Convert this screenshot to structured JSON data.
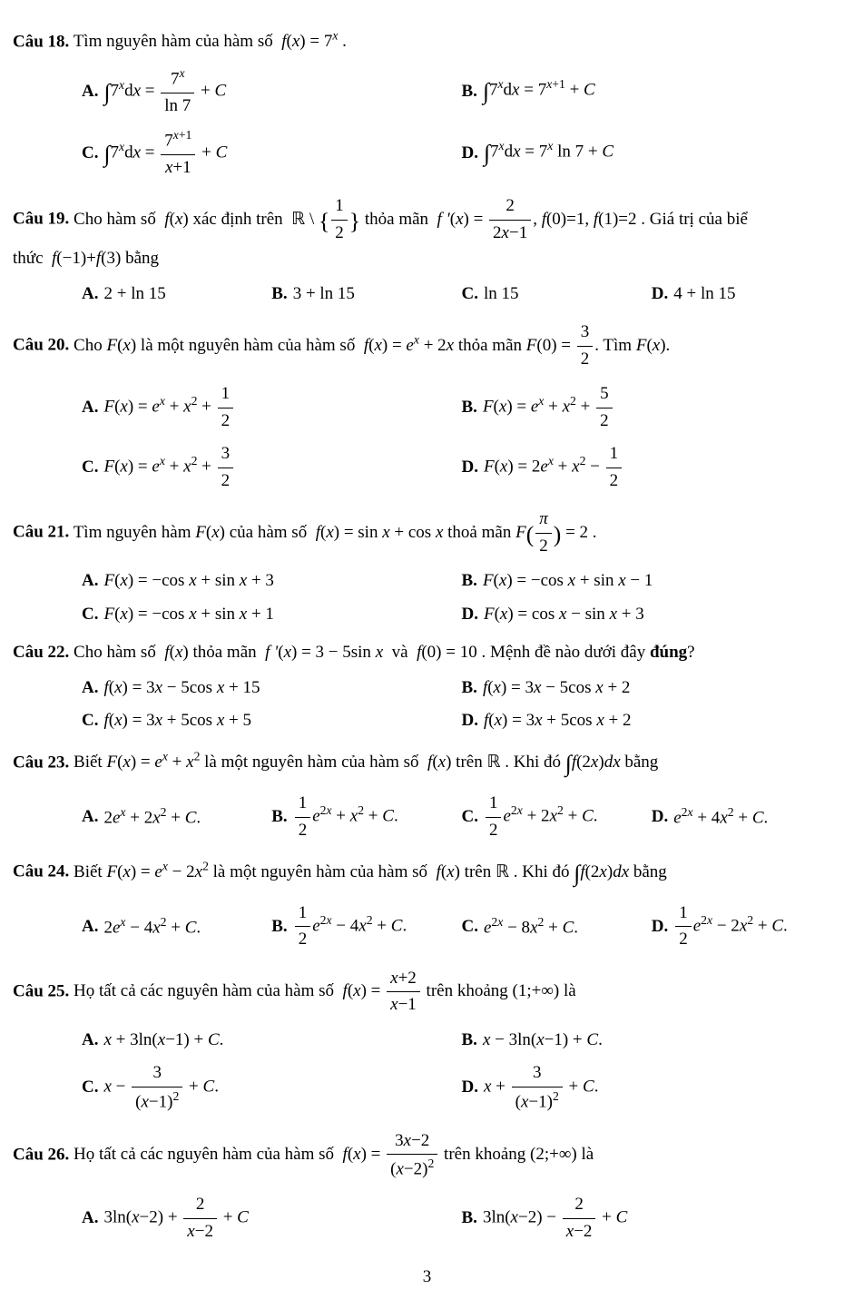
{
  "page_number": "3",
  "questions": [
    {
      "id": "q18",
      "label": "Câu 18.",
      "prompt_html": "Tìm nguyên hàm của hàm số &nbsp;<i>f</i>(<i>x</i>) = 7<sup><i>x</i></sup> .",
      "layout": "two",
      "options": [
        {
          "tag": "A.",
          "html": "<span class='int'>∫</span>7<sup><i>x</i></sup>d<i>x</i> = <span class='frac'><span class='n'>7<sup><i>x</i></sup></span><span class='d'>ln 7</span></span> + <i>C</i>"
        },
        {
          "tag": "B.",
          "html": "<span class='int'>∫</span>7<sup><i>x</i></sup>d<i>x</i> = 7<sup><i>x</i>+1</sup> + <i>C</i>"
        },
        {
          "tag": "C.",
          "html": "<span class='int'>∫</span>7<sup><i>x</i></sup>d<i>x</i> = <span class='frac'><span class='n'>7<sup><i>x</i>+1</sup></span><span class='d'><i>x</i>+1</span></span> + <i>C</i>"
        },
        {
          "tag": "D.",
          "html": "<span class='int'>∫</span>7<sup><i>x</i></sup>d<i>x</i> = 7<sup><i>x</i></sup> ln 7 + <i>C</i>"
        }
      ]
    },
    {
      "id": "q19",
      "label": "Câu  19.",
      "prompt_html": "Cho hàm số &nbsp;<i>f</i>(<i>x</i>) xác định trên &nbsp;<span class='dstr'>ℝ</span> \\ <span class='big'>{</span><span class='frac'><span class='n'>1</span><span class='d'>2</span></span><span class='big'>}</span> thỏa mãn &nbsp;<i>f ′</i>(<i>x</i>) = <span class='frac'><span class='n'>2</span><span class='d'>2<i>x</i>−1</span></span>, <i>f</i>(0)=1, <i>f</i>(1)=2 . Giá trị của biể",
      "prompt_line2": "thức &nbsp;<i>f</i>(−1)+<i>f</i>(3) bằng",
      "layout": "four",
      "options": [
        {
          "tag": "A.",
          "html": "2 + ln 15"
        },
        {
          "tag": "B.",
          "html": "3 + ln 15"
        },
        {
          "tag": "C.",
          "html": "ln 15"
        },
        {
          "tag": "D.",
          "html": "4 + ln 15"
        }
      ]
    },
    {
      "id": "q20",
      "label": "Câu 20.",
      "prompt_html": "Cho <i>F</i>(<i>x</i>) là một nguyên hàm của hàm số &nbsp;<i>f</i>(<i>x</i>) = <i>e</i><sup><i>x</i></sup> + 2<i>x</i> thỏa mãn <i>F</i>(0) = <span class='frac'><span class='n'>3</span><span class='d'>2</span></span>. Tìm <i>F</i>(<i>x</i>).",
      "layout": "two",
      "options": [
        {
          "tag": "A.",
          "html": "<i>F</i>(<i>x</i>) = <i>e</i><sup><i>x</i></sup> + <i>x</i><sup>2</sup> + <span class='frac'><span class='n'>1</span><span class='d'>2</span></span>"
        },
        {
          "tag": "B.",
          "html": "<i>F</i>(<i>x</i>) = <i>e</i><sup><i>x</i></sup> + <i>x</i><sup>2</sup> + <span class='frac'><span class='n'>5</span><span class='d'>2</span></span>"
        },
        {
          "tag": "C.",
          "html": "<i>F</i>(<i>x</i>) = <i>e</i><sup><i>x</i></sup> + <i>x</i><sup>2</sup> + <span class='frac'><span class='n'>3</span><span class='d'>2</span></span>"
        },
        {
          "tag": "D.",
          "html": "<i>F</i>(<i>x</i>) = 2<i>e</i><sup><i>x</i></sup> + <i>x</i><sup>2</sup> − <span class='frac'><span class='n'>1</span><span class='d'>2</span></span>"
        }
      ]
    },
    {
      "id": "q21",
      "label": "Câu 21.",
      "prompt_html": "Tìm nguyên hàm <i>F</i>(<i>x</i>) của hàm số &nbsp;<i>f</i>(<i>x</i>) = sin <i>x</i> + cos <i>x</i> thoả mãn <i>F</i><span class='big'>(</span><span class='frac'><span class='n'><i>π</i></span><span class='d'>2</span></span><span class='big'>)</span> = 2 .",
      "layout": "two",
      "options": [
        {
          "tag": "A.",
          "html": "<i>F</i>(<i>x</i>) = −cos <i>x</i> + sin <i>x</i> + 3"
        },
        {
          "tag": "B.",
          "html": "<i>F</i>(<i>x</i>) = −cos <i>x</i> + sin <i>x</i> − 1"
        },
        {
          "tag": "C.",
          "html": "<i>F</i>(<i>x</i>) = −cos <i>x</i> + sin <i>x</i> + 1"
        },
        {
          "tag": "D.",
          "html": "<i>F</i>(<i>x</i>) = cos <i>x</i> − sin <i>x</i> + 3"
        }
      ]
    },
    {
      "id": "q22",
      "label": "Câu 22.",
      "prompt_html": "Cho hàm số &nbsp;<i>f</i>(<i>x</i>) thỏa mãn &nbsp;<i>f '</i>(<i>x</i>) = 3 − 5sin <i>x</i>&nbsp; và &nbsp;<i>f</i>(0) = 10 . Mệnh đề nào dưới đây <b>đúng</b>?",
      "layout": "two",
      "options": [
        {
          "tag": "A.",
          "html": "<i>f</i>(<i>x</i>) = 3<i>x</i> − 5cos <i>x</i> + 15"
        },
        {
          "tag": "B.",
          "html": "<i>f</i>(<i>x</i>) = 3<i>x</i> − 5cos <i>x</i> + 2"
        },
        {
          "tag": "C.",
          "html": "<i>f</i>(<i>x</i>) = 3<i>x</i> + 5cos <i>x</i> + 5"
        },
        {
          "tag": "D.",
          "html": "<i>f</i>(<i>x</i>) = 3<i>x</i> + 5cos <i>x</i> + 2"
        }
      ]
    },
    {
      "id": "q23",
      "label": "Câu 23.",
      "prompt_html": "Biết <i>F</i>(<i>x</i>) = <i>e</i><sup><i>x</i></sup> + <i>x</i><sup>2</sup> là một nguyên hàm của hàm số &nbsp;<i>f</i>(<i>x</i>) trên <span class='dstr'>ℝ</span> . Khi đó <span class='int'>∫</span><i>f</i>(2<i>x</i>)<i>dx</i> bằng",
      "layout": "four",
      "options": [
        {
          "tag": "A.",
          "html": "2<i>e</i><sup><i>x</i></sup> + 2<i>x</i><sup>2</sup> + <i>C</i>."
        },
        {
          "tag": "B.",
          "html": "<span class='frac'><span class='n'>1</span><span class='d'>2</span></span><i>e</i><sup>2<i>x</i></sup> + <i>x</i><sup>2</sup> + <i>C</i>."
        },
        {
          "tag": "C.",
          "html": "<span class='frac'><span class='n'>1</span><span class='d'>2</span></span><i>e</i><sup>2<i>x</i></sup> + 2<i>x</i><sup>2</sup> + <i>C</i>."
        },
        {
          "tag": "D.",
          "html": "<i>e</i><sup>2<i>x</i></sup> + 4<i>x</i><sup>2</sup> + <i>C</i>."
        }
      ]
    },
    {
      "id": "q24",
      "label": "Câu 24.",
      "prompt_html": "Biết <i>F</i>(<i>x</i>) = <i>e</i><sup><i>x</i></sup> − 2<i>x</i><sup>2</sup> là một nguyên hàm của hàm số &nbsp;<i>f</i>(<i>x</i>) trên <span class='dstr'>ℝ</span> . Khi đó <span class='int'>∫</span><i>f</i>(2<i>x</i>)<i>dx</i> bằng",
      "layout": "four",
      "options": [
        {
          "tag": "A.",
          "html": "2<i>e</i><sup><i>x</i></sup> − 4<i>x</i><sup>2</sup> + <i>C</i>."
        },
        {
          "tag": "B.",
          "html": "<span class='frac'><span class='n'>1</span><span class='d'>2</span></span><i>e</i><sup>2<i>x</i></sup> − 4<i>x</i><sup>2</sup> + <i>C</i>."
        },
        {
          "tag": "C.",
          "html": "<i>e</i><sup>2<i>x</i></sup> − 8<i>x</i><sup>2</sup> + <i>C</i>."
        },
        {
          "tag": "D.",
          "html": "<span class='frac'><span class='n'>1</span><span class='d'>2</span></span><i>e</i><sup>2<i>x</i></sup> − 2<i>x</i><sup>2</sup> + <i>C</i>."
        }
      ]
    },
    {
      "id": "q25",
      "label": "Câu 25.",
      "prompt_html": "Họ tất cả các nguyên hàm của hàm số &nbsp;<i>f</i>(<i>x</i>) = <span class='frac'><span class='n'><i>x</i>+2</span><span class='d'><i>x</i>−1</span></span> trên khoảng (1;+∞) là",
      "layout": "two",
      "options": [
        {
          "tag": "A.",
          "html": "<i>x</i> + 3ln(<i>x</i>−1) + <i>C</i>."
        },
        {
          "tag": "B.",
          "html": "<i>x</i> − 3ln(<i>x</i>−1) + <i>C</i>."
        },
        {
          "tag": "C.",
          "html": "<i>x</i> − <span class='frac'><span class='n'>3</span><span class='d'>(<i>x</i>−1)<sup>2</sup></span></span> + <i>C</i>."
        },
        {
          "tag": "D.",
          "html": "<i>x</i> + <span class='frac'><span class='n'>3</span><span class='d'>(<i>x</i>−1)<sup>2</sup></span></span> + <i>C</i>."
        }
      ]
    },
    {
      "id": "q26",
      "label": "Câu 26.",
      "prompt_html": "Họ tất cả các nguyên hàm của hàm số &nbsp;<i>f</i>(<i>x</i>) = <span class='frac'><span class='n'>3<i>x</i>−2</span><span class='d'>(<i>x</i>−2)<sup>2</sup></span></span> trên khoảng (2;+∞) là",
      "layout": "two",
      "options": [
        {
          "tag": "A.",
          "html": "3ln(<i>x</i>−2) + <span class='frac'><span class='n'>2</span><span class='d'><i>x</i>−2</span></span> + <i>C</i>"
        },
        {
          "tag": "B.",
          "html": "3ln(<i>x</i>−2) − <span class='frac'><span class='n'>2</span><span class='d'><i>x</i>−2</span></span> + <i>C</i>"
        }
      ]
    }
  ]
}
